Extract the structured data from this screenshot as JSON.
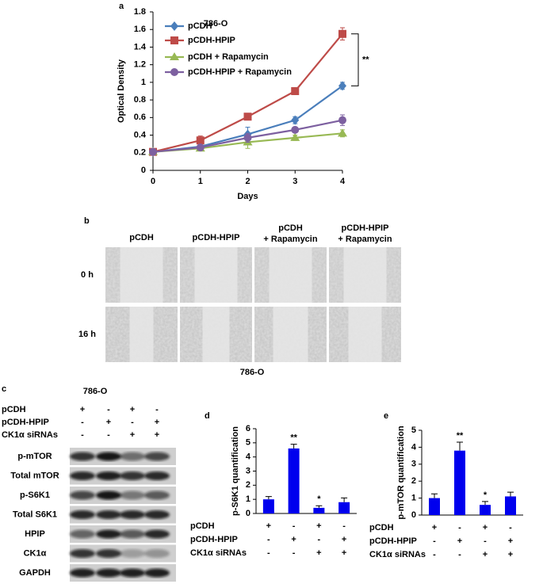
{
  "chart_data": [
    {
      "type": "line",
      "panel_label": "a",
      "title": "786-O",
      "x_label": "Days",
      "y_label": "Optical Density",
      "x": [
        0,
        1,
        2,
        3,
        4
      ],
      "xlim": [
        0,
        4
      ],
      "xticks": [
        0,
        1,
        2,
        3,
        4
      ],
      "ylim": [
        0,
        1.8
      ],
      "yticks": [
        0,
        0.2,
        0.4,
        0.6,
        0.8,
        1,
        1.2,
        1.4,
        1.6,
        1.8
      ],
      "series": [
        {
          "name": "pCDH",
          "color": "#4a7ebb",
          "marker": "diamond",
          "values": [
            0.21,
            0.27,
            0.41,
            0.57,
            0.96
          ],
          "errors": [
            0.02,
            0.03,
            0.08,
            0.04,
            0.04
          ]
        },
        {
          "name": "pCDH-HPIP",
          "color": "#be4b48",
          "marker": "square",
          "values": [
            0.21,
            0.34,
            0.61,
            0.9,
            1.55
          ],
          "errors": [
            0.02,
            0.05,
            0.03,
            0.04,
            0.07
          ]
        },
        {
          "name": "pCDH + Rapamycin",
          "color": "#98b954",
          "marker": "triangle",
          "values": [
            0.21,
            0.25,
            0.32,
            0.37,
            0.42
          ],
          "errors": [
            0.02,
            0.03,
            0.07,
            0.03,
            0.04
          ]
        },
        {
          "name": "pCDH-HPIP + Rapamycin",
          "color": "#7d60a0",
          "marker": "circle",
          "values": [
            0.21,
            0.26,
            0.37,
            0.46,
            0.57
          ],
          "errors": [
            0.02,
            0.03,
            0.05,
            0.03,
            0.06
          ]
        }
      ],
      "annotation": "**"
    },
    {
      "type": "bar",
      "panel_label": "d",
      "y_label": "p-S6K1 quantification",
      "color": "#0000ee",
      "values": [
        1,
        4.6,
        0.4,
        0.8
      ],
      "errors": [
        0.2,
        0.3,
        0.15,
        0.3
      ],
      "significance": [
        null,
        "**",
        "*",
        null
      ],
      "ylim": [
        0,
        6
      ],
      "yticks": [
        0,
        1,
        2,
        3,
        4,
        5,
        6
      ],
      "conditions": [
        {
          "label": "pCDH",
          "signs": [
            "+",
            "-",
            "+",
            "-"
          ]
        },
        {
          "label": "pCDH-HPIP",
          "signs": [
            "-",
            "+",
            "-",
            "+"
          ]
        },
        {
          "label": "CK1α siRNAs",
          "signs": [
            "-",
            "-",
            "+",
            "+"
          ]
        }
      ]
    },
    {
      "type": "bar",
      "panel_label": "e",
      "y_label": "p-mTOR quantification",
      "color": "#0000ee",
      "values": [
        1,
        3.8,
        0.6,
        1.1
      ],
      "errors": [
        0.25,
        0.5,
        0.2,
        0.25
      ],
      "significance": [
        null,
        "**",
        "*",
        null
      ],
      "ylim": [
        0,
        5
      ],
      "yticks": [
        0,
        1,
        2,
        3,
        4,
        5
      ],
      "conditions": [
        {
          "label": "pCDH",
          "signs": [
            "+",
            "-",
            "+",
            "-"
          ]
        },
        {
          "label": "pCDH-HPIP",
          "signs": [
            "-",
            "+",
            "-",
            "+"
          ]
        },
        {
          "label": "CK1α siRNAs",
          "signs": [
            "-",
            "-",
            "+",
            "+"
          ]
        }
      ]
    }
  ],
  "wound_assay": {
    "panel_label": "b",
    "columns": [
      [
        "pCDH"
      ],
      [
        "pCDH-HPIP"
      ],
      [
        "pCDH",
        "+ Rapamycin"
      ],
      [
        "pCDH-HPIP",
        "+ Rapamycin"
      ]
    ],
    "rows": [
      "0 h",
      "16 h"
    ],
    "caption": "786-O"
  },
  "western_blot": {
    "panel_label": "c",
    "cell_line": "786-O",
    "conditions": [
      {
        "label": "pCDH",
        "signs": [
          "+",
          "-",
          "+",
          "-"
        ]
      },
      {
        "label": "pCDH-HPIP",
        "signs": [
          "-",
          "+",
          "-",
          "+"
        ]
      },
      {
        "label": "CK1α siRNAs",
        "signs": [
          "-",
          "-",
          "+",
          "+"
        ]
      }
    ],
    "blots": [
      "p-mTOR",
      "Total mTOR",
      "p-S6K1",
      "Total S6K1",
      "HPIP",
      "CK1α",
      "GAPDH"
    ]
  }
}
